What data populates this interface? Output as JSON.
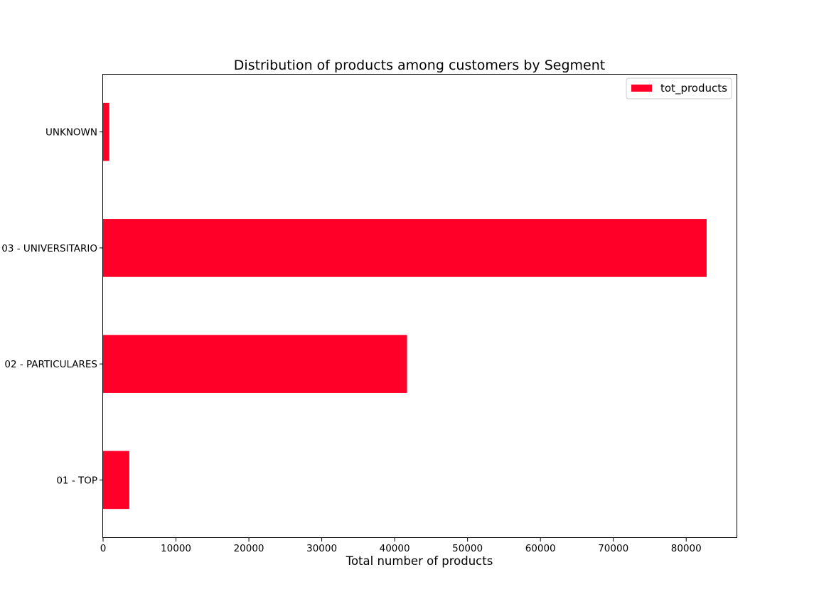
{
  "chart_data": {
    "type": "bar",
    "orientation": "horizontal",
    "title": "Distribution of products among customers by Segment",
    "xlabel": "Total number of products",
    "ylabel": "",
    "categories": [
      "01 - TOP",
      "02 - PARTICULARES",
      "03 - UNIVERSITARIO",
      "UNKNOWN"
    ],
    "series": [
      {
        "name": "tot_products",
        "values": [
          3600,
          41700,
          82800,
          850
        ],
        "color": "#ff0029"
      }
    ],
    "xlim": [
      0,
      87000
    ],
    "xticks": [
      0,
      10000,
      20000,
      30000,
      40000,
      50000,
      60000,
      70000,
      80000
    ],
    "xtick_labels": [
      "0",
      "10000",
      "20000",
      "30000",
      "40000",
      "50000",
      "60000",
      "70000",
      "80000"
    ],
    "grid": false,
    "legend_position": "top-right"
  }
}
